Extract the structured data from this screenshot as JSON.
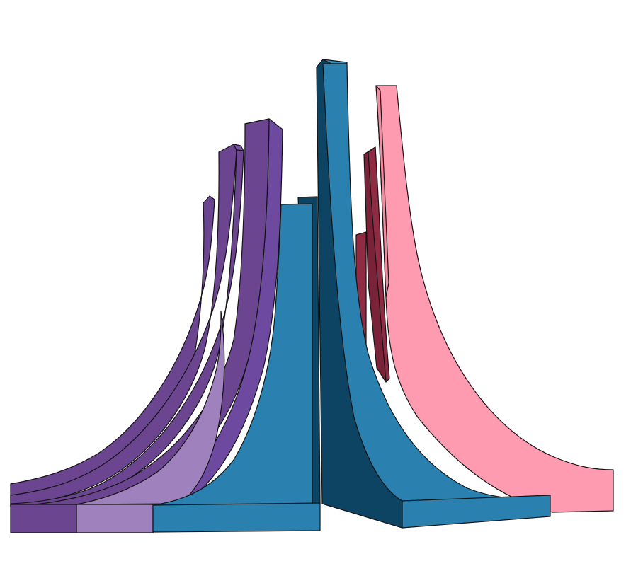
{
  "scene": {
    "colors": {
      "purple_dark": "#6b4590",
      "purple_mid": "#6d4aa0",
      "purple_light": "#9f82bd",
      "blue": "#2a80ae",
      "blue_dark": "#0d4464",
      "crimson": "#8f2c44",
      "pink": "#fe9bb0",
      "outline": "#141414"
    },
    "shapes": [
      {
        "name": "crimson-fin-back",
        "color": "crimson"
      },
      {
        "name": "crimson-fin-front",
        "color": "crimson"
      },
      {
        "name": "pink-ribbon",
        "color": "pink"
      },
      {
        "name": "purple-fin-1",
        "color": "purple_dark"
      },
      {
        "name": "purple-fin-2",
        "color": "purple_dark"
      },
      {
        "name": "purple-fin-3",
        "color": "purple_dark"
      },
      {
        "name": "purple-fin-4",
        "color": "purple_mid"
      },
      {
        "name": "lavender-ribbon",
        "color": "purple_light"
      },
      {
        "name": "blue-left-ribbon",
        "color": "blue"
      },
      {
        "name": "blue-center-tower",
        "color": "blue"
      },
      {
        "name": "blue-right-ribbon",
        "color": "blue"
      }
    ]
  }
}
